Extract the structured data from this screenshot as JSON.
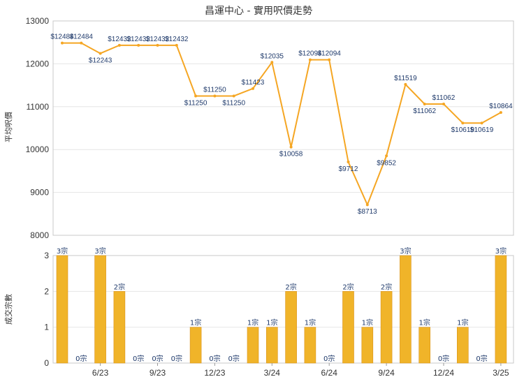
{
  "title": "昌運中心 - 實用呎價走勢",
  "colors": {
    "line": "#f5a623",
    "bar": "#f0b429",
    "label": "#1f3a6b"
  },
  "chart_data": [
    {
      "type": "line",
      "ylabel": "平均呎價",
      "ylim": [
        8000,
        13000
      ],
      "yticks": [
        "8000",
        "9000",
        "10000",
        "11000",
        "12000",
        "13000"
      ],
      "grid": true,
      "series": [
        {
          "values": [
            12484,
            12484,
            12243,
            12432,
            12432,
            12432,
            12432,
            11250,
            11250,
            11250,
            11423,
            12035,
            10058,
            12094,
            12094,
            9712,
            8713,
            9852,
            11519,
            11062,
            11062,
            10619,
            10619,
            10864
          ],
          "labels": [
            "$12484",
            "$12484",
            "$12243",
            "$12432",
            "$12432",
            "$12432",
            "$12432",
            "$11250",
            "$11250",
            "$11250",
            "$11423",
            "$12035",
            "$10058",
            "$12094",
            "$12094",
            "$9712",
            "$8713",
            "$9852",
            "$11519",
            "$11062",
            "$11062",
            "$10619",
            "$10619",
            "$10864"
          ]
        }
      ]
    },
    {
      "type": "bar",
      "ylabel": "成交宗數",
      "ylim": [
        0,
        3
      ],
      "yticks": [
        "0",
        "1",
        "2",
        "3"
      ],
      "xticks": [
        {
          "label": "6/23",
          "index": 2
        },
        {
          "label": "9/23",
          "index": 5
        },
        {
          "label": "12/23",
          "index": 8
        },
        {
          "label": "3/24",
          "index": 11
        },
        {
          "label": "6/24",
          "index": 14
        },
        {
          "label": "9/24",
          "index": 17
        },
        {
          "label": "12/24",
          "index": 20
        },
        {
          "label": "3/25",
          "index": 23
        }
      ],
      "values": [
        3,
        0,
        3,
        2,
        0,
        0,
        0,
        1,
        0,
        0,
        1,
        1,
        2,
        1,
        0,
        2,
        1,
        2,
        3,
        1,
        0,
        1,
        0,
        3
      ],
      "labels": [
        "3宗",
        "0宗",
        "3宗",
        "2宗",
        "0宗",
        "0宗",
        "0宗",
        "1宗",
        "0宗",
        "0宗",
        "1宗",
        "1宗",
        "2宗",
        "1宗",
        "0宗",
        "2宗",
        "1宗",
        "2宗",
        "3宗",
        "1宗",
        "0宗",
        "1宗",
        "0宗",
        "3宗"
      ]
    }
  ]
}
